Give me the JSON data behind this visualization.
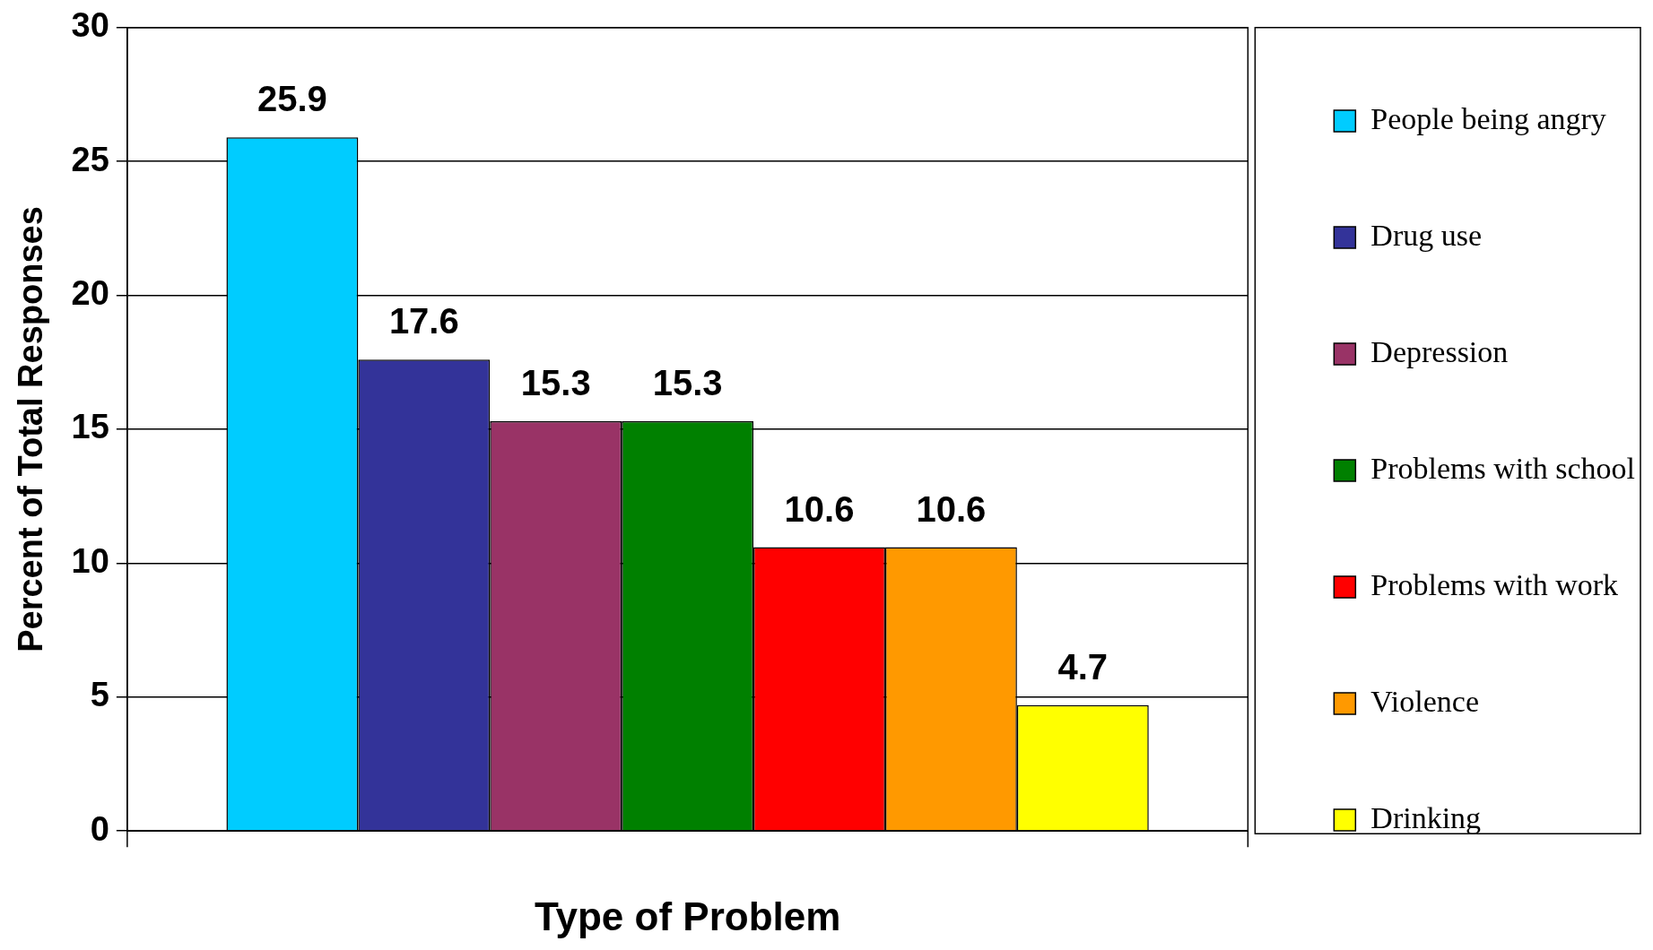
{
  "chart_data": {
    "type": "bar",
    "xlabel": "Type of Problem",
    "ylabel": "Percent of Total Responses",
    "categories": [
      null
    ],
    "series": [
      {
        "name": "People being angry",
        "color": "#00ccff",
        "values": [
          25.9
        ]
      },
      {
        "name": "Drug use",
        "color": "#333399",
        "values": [
          17.6
        ]
      },
      {
        "name": "Depression",
        "color": "#993366",
        "values": [
          15.3
        ]
      },
      {
        "name": "Problems with school",
        "color": "#008000",
        "values": [
          15.3
        ]
      },
      {
        "name": "Problems with work",
        "color": "#ff0000",
        "values": [
          10.6
        ]
      },
      {
        "name": "Violence",
        "color": "#ff9900",
        "values": [
          10.6
        ]
      },
      {
        "name": "Drinking",
        "color": "#ffff00",
        "values": [
          4.7
        ]
      }
    ],
    "ylim": [
      0,
      30
    ],
    "yticks": [
      0,
      5,
      10,
      15,
      20,
      25,
      30
    ],
    "grid": "y",
    "legend": "right",
    "data_labels": true
  }
}
